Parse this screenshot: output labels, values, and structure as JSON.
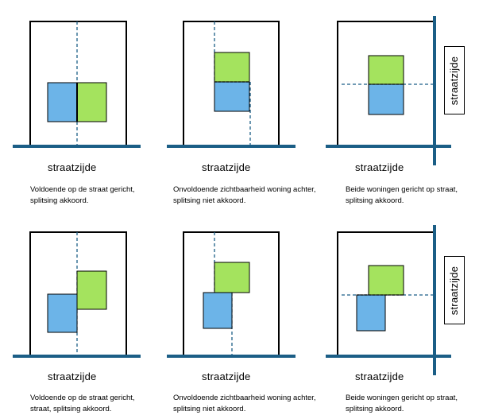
{
  "colors": {
    "street": "#1b5e86",
    "house_front": "#6cb4e8",
    "house_back": "#a4e35e",
    "outline": "#000000",
    "sightline": "#1b5e86"
  },
  "panels": [
    {
      "street_label": "straatzijde",
      "caption": "Voldoende op de straat gericht, splitsing akkoord."
    },
    {
      "street_label": "straatzijde",
      "caption": "Onvoldoende zichtbaarheid woning achter, splitsing niet akkoord."
    },
    {
      "street_label": "straatzijde",
      "side_label": "straatzijde",
      "caption": "Beide woningen gericht op straat, splitsing akkoord."
    },
    {
      "street_label": "straatzijde",
      "caption": "Voldoende op de straat gericht, straat, splitsing akkoord."
    },
    {
      "street_label": "straatzijde",
      "caption": "Onvoldoende zichtbaarheid woning achter, splitsing niet akkoord."
    },
    {
      "street_label": "straatzijde",
      "side_label": "straatzijde",
      "caption": "Beide woningen gericht op straat, splitsing akkoord."
    }
  ]
}
